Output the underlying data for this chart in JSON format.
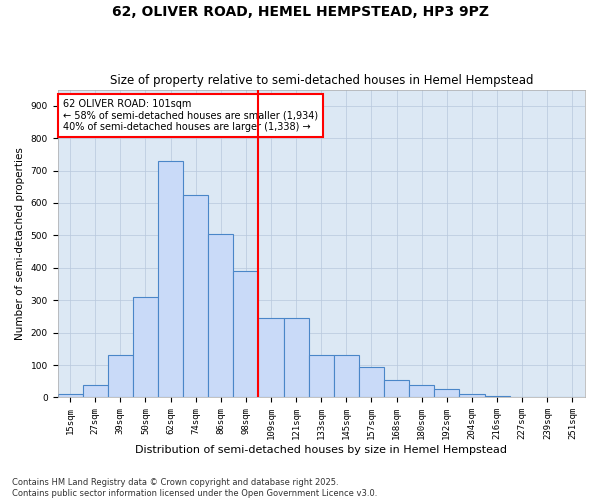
{
  "title_line1": "62, OLIVER ROAD, HEMEL HEMPSTEAD, HP3 9PZ",
  "title_line2": "Size of property relative to semi-detached houses in Hemel Hempstead",
  "xlabel": "Distribution of semi-detached houses by size in Hemel Hempstead",
  "ylabel": "Number of semi-detached properties",
  "footer": "Contains HM Land Registry data © Crown copyright and database right 2025.\nContains public sector information licensed under the Open Government Licence v3.0.",
  "bin_labels": [
    "15sqm",
    "27sqm",
    "39sqm",
    "50sqm",
    "62sqm",
    "74sqm",
    "86sqm",
    "98sqm",
    "109sqm",
    "121sqm",
    "133sqm",
    "145sqm",
    "157sqm",
    "168sqm",
    "180sqm",
    "192sqm",
    "204sqm",
    "216sqm",
    "227sqm",
    "239sqm",
    "251sqm"
  ],
  "bar_values": [
    10,
    40,
    130,
    310,
    730,
    625,
    505,
    390,
    245,
    245,
    130,
    130,
    95,
    55,
    40,
    25,
    10,
    5,
    2,
    1,
    0
  ],
  "bar_color": "#c9daf8",
  "bar_edge_color": "#4a86c8",
  "vline_color": "red",
  "annotation_text_line1": "62 OLIVER ROAD: 101sqm",
  "annotation_text_line2": "← 58% of semi-detached houses are smaller (1,934)",
  "annotation_text_line3": "40% of semi-detached houses are larger (1,338) →",
  "annotation_box_color": "white",
  "annotation_box_edge_color": "red",
  "ylim": [
    0,
    950
  ],
  "yticks": [
    0,
    100,
    200,
    300,
    400,
    500,
    600,
    700,
    800,
    900
  ],
  "grid_color": "#b8c8dc",
  "bg_color": "#dce8f4",
  "title1_fontsize": 10,
  "title2_fontsize": 8.5,
  "xlabel_fontsize": 8,
  "ylabel_fontsize": 7.5,
  "footer_fontsize": 6,
  "tick_fontsize": 6.5
}
